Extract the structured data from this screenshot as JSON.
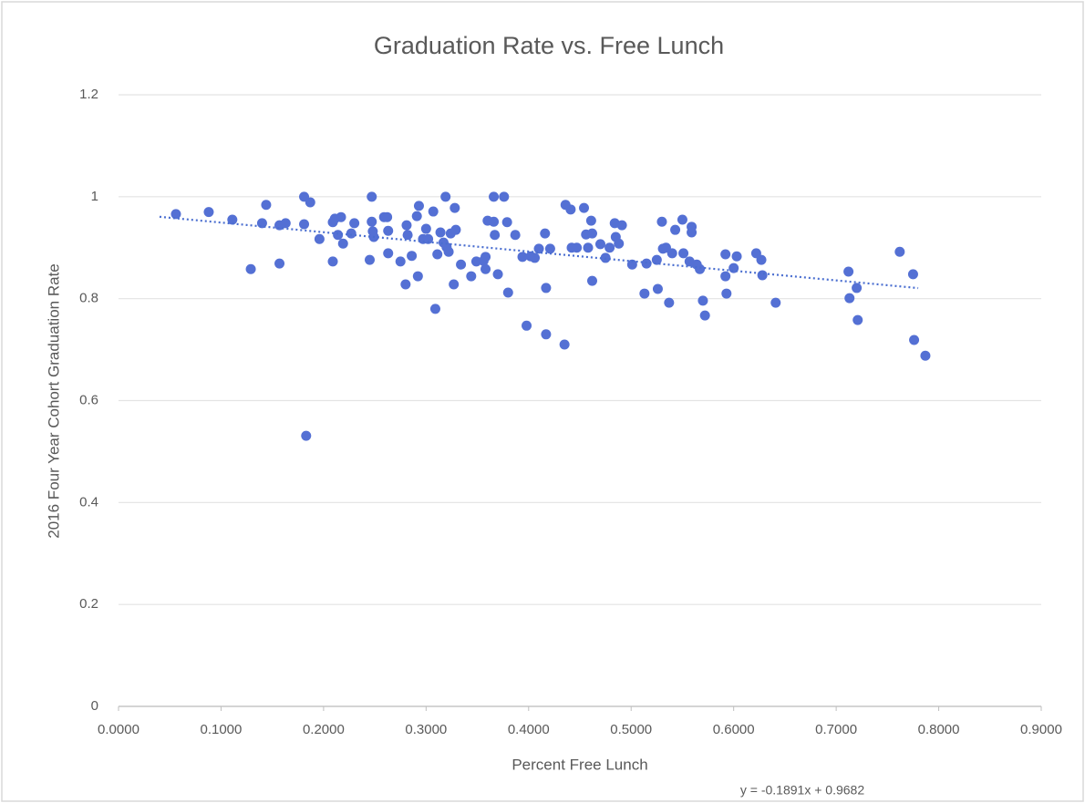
{
  "chart_data": {
    "type": "scatter",
    "title": "Graduation Rate vs. Free Lunch",
    "x_label": "Percent Free Lunch",
    "y_label": "2016 Four Year Cohort Graduation Rate",
    "xlim": [
      0,
      0.9
    ],
    "ylim": [
      0,
      1.2
    ],
    "xticks": [
      {
        "value": 0,
        "label": "0.0000"
      },
      {
        "value": 0.1,
        "label": "0.1000"
      },
      {
        "value": 0.2,
        "label": "0.2000"
      },
      {
        "value": 0.3,
        "label": "0.3000"
      },
      {
        "value": 0.4,
        "label": "0.4000"
      },
      {
        "value": 0.5,
        "label": "0.5000"
      },
      {
        "value": 0.6,
        "label": "0.6000"
      },
      {
        "value": 0.7,
        "label": "0.7000"
      },
      {
        "value": 0.8,
        "label": "0.8000"
      },
      {
        "value": 0.9,
        "label": "0.9000"
      }
    ],
    "yticks": [
      0,
      0.2,
      0.4,
      0.6,
      0.8,
      1,
      1.2
    ],
    "grid": true,
    "color": "#5470d4",
    "x": [
      0.056,
      0.088,
      0.111,
      0.129,
      0.14,
      0.144,
      0.157,
      0.157,
      0.163,
      0.181,
      0.181,
      0.187,
      0.183,
      0.196,
      0.209,
      0.209,
      0.211,
      0.217,
      0.214,
      0.219,
      0.227,
      0.23,
      0.245,
      0.247,
      0.247,
      0.248,
      0.249,
      0.259,
      0.262,
      0.263,
      0.263,
      0.275,
      0.28,
      0.281,
      0.282,
      0.286,
      0.292,
      0.291,
      0.293,
      0.297,
      0.3,
      0.302,
      0.307,
      0.309,
      0.311,
      0.314,
      0.317,
      0.319,
      0.32,
      0.322,
      0.324,
      0.327,
      0.328,
      0.329,
      0.334,
      0.344,
      0.349,
      0.356,
      0.358,
      0.358,
      0.36,
      0.366,
      0.366,
      0.367,
      0.37,
      0.376,
      0.379,
      0.38,
      0.387,
      0.394,
      0.398,
      0.402,
      0.406,
      0.41,
      0.416,
      0.417,
      0.417,
      0.421,
      0.435,
      0.436,
      0.441,
      0.442,
      0.447,
      0.454,
      0.456,
      0.458,
      0.461,
      0.462,
      0.462,
      0.47,
      0.475,
      0.479,
      0.484,
      0.485,
      0.488,
      0.491,
      0.501,
      0.513,
      0.515,
      0.525,
      0.526,
      0.53,
      0.531,
      0.534,
      0.537,
      0.54,
      0.543,
      0.55,
      0.551,
      0.557,
      0.559,
      0.559,
      0.564,
      0.567,
      0.57,
      0.572,
      0.592,
      0.592,
      0.593,
      0.603,
      0.6,
      0.622,
      0.627,
      0.628,
      0.641,
      0.712,
      0.713,
      0.72,
      0.721,
      0.762,
      0.775,
      0.776,
      0.787
    ],
    "values": [
      0.966,
      0.97,
      0.955,
      0.858,
      0.948,
      0.984,
      0.869,
      0.944,
      0.948,
      1.0,
      0.946,
      0.989,
      0.531,
      0.917,
      0.873,
      0.95,
      0.957,
      0.96,
      0.925,
      0.908,
      0.928,
      0.948,
      0.876,
      1.0,
      0.951,
      0.932,
      0.921,
      0.96,
      0.96,
      0.933,
      0.889,
      0.873,
      0.828,
      0.944,
      0.925,
      0.884,
      0.844,
      0.962,
      0.982,
      0.917,
      0.937,
      0.917,
      0.971,
      0.78,
      0.887,
      0.93,
      0.91,
      1.0,
      0.901,
      0.892,
      0.928,
      0.828,
      0.978,
      0.935,
      0.867,
      0.844,
      0.873,
      0.874,
      0.858,
      0.882,
      0.953,
      1.0,
      0.951,
      0.925,
      0.848,
      1.0,
      0.95,
      0.812,
      0.925,
      0.882,
      0.747,
      0.883,
      0.88,
      0.898,
      0.928,
      0.821,
      0.73,
      0.898,
      0.71,
      0.984,
      0.975,
      0.9,
      0.9,
      0.978,
      0.926,
      0.9,
      0.953,
      0.835,
      0.928,
      0.907,
      0.88,
      0.9,
      0.948,
      0.921,
      0.908,
      0.944,
      0.867,
      0.81,
      0.869,
      0.876,
      0.819,
      0.951,
      0.898,
      0.9,
      0.792,
      0.889,
      0.935,
      0.955,
      0.889,
      0.873,
      0.941,
      0.93,
      0.867,
      0.858,
      0.796,
      0.767,
      0.887,
      0.844,
      0.81,
      0.883,
      0.86,
      0.889,
      0.876,
      0.846,
      0.792,
      0.853,
      0.801,
      0.821,
      0.758,
      0.892,
      0.848,
      0.719,
      0.688
    ],
    "trendline": {
      "label": "y = -0.1891x + 0.9682",
      "slope": -0.1891,
      "intercept": 0.9682,
      "x_range": [
        0.04,
        0.78
      ],
      "color": "#4a6ed0"
    }
  }
}
